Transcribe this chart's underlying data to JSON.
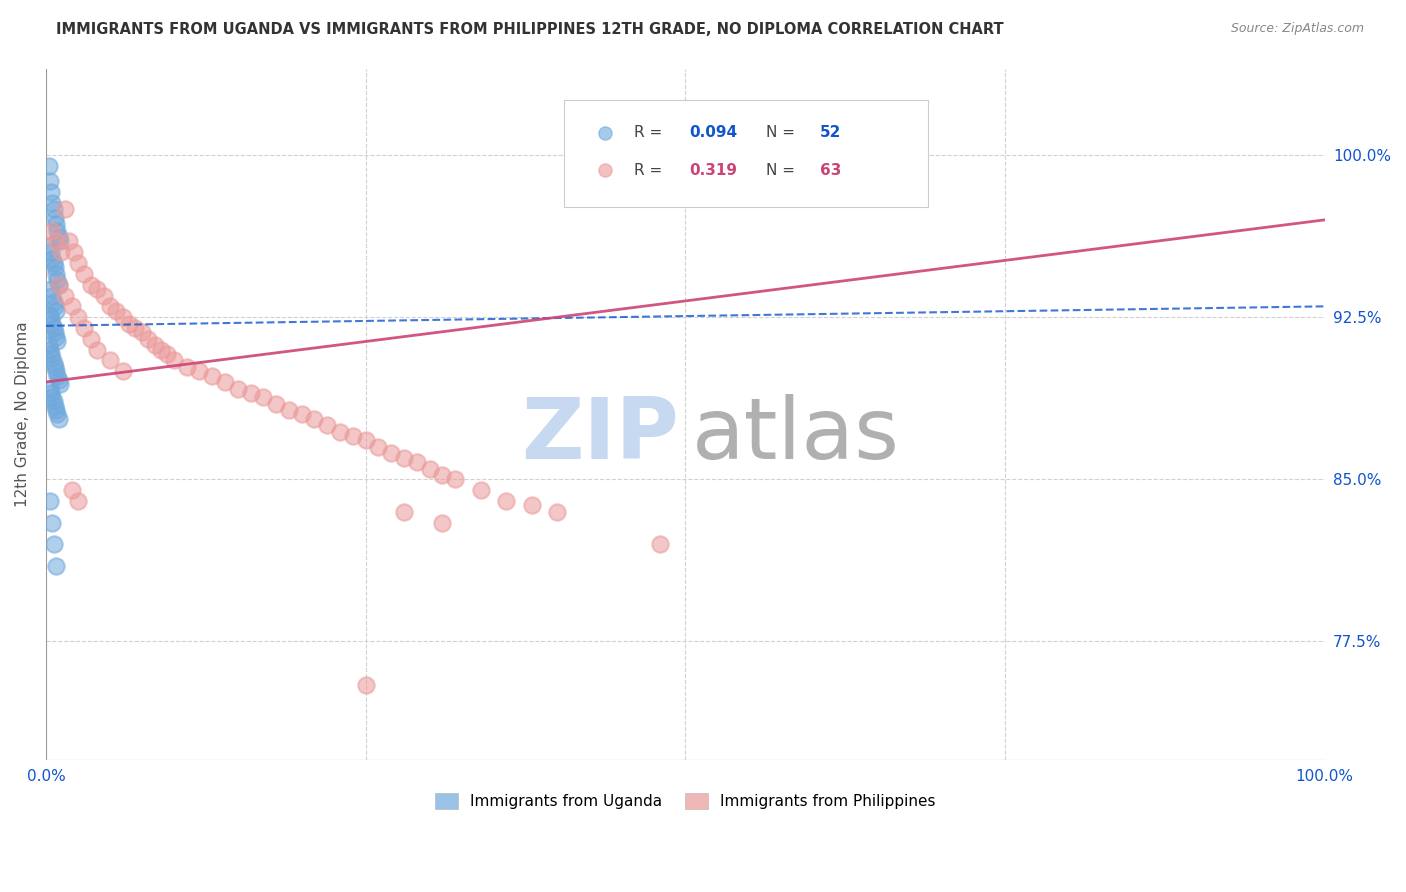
{
  "title": "IMMIGRANTS FROM UGANDA VS IMMIGRANTS FROM PHILIPPINES 12TH GRADE, NO DIPLOMA CORRELATION CHART",
  "source": "Source: ZipAtlas.com",
  "ylabel": "12th Grade, No Diploma",
  "uganda_color": "#6fa8dc",
  "philippines_color": "#ea9999",
  "uganda_line_color": "#1155cc",
  "philippines_line_color": "#cc4477",
  "uganda_R": 0.094,
  "uganda_N": 52,
  "philippines_R": 0.319,
  "philippines_N": 63,
  "watermark_zip_color": "#c6d9f0",
  "watermark_atlas_color": "#b0b0b0",
  "xlim": [
    0.0,
    1.0
  ],
  "ylim": [
    0.72,
    1.04
  ],
  "yticks": [
    0.775,
    0.85,
    0.925,
    1.0
  ],
  "ytick_labels": [
    "77.5%",
    "85.0%",
    "92.5%",
    "100.0%"
  ],
  "xtick_labels": [
    "0.0%",
    "",
    "",
    "",
    "100.0%"
  ],
  "legend_label_uganda": "Immigrants from Uganda",
  "legend_label_philippines": "Immigrants from Philippines",
  "uganda_x": [
    0.002,
    0.003,
    0.004,
    0.005,
    0.006,
    0.007,
    0.008,
    0.009,
    0.01,
    0.011,
    0.003,
    0.004,
    0.005,
    0.006,
    0.007,
    0.008,
    0.009,
    0.01,
    0.004,
    0.005,
    0.006,
    0.007,
    0.008,
    0.003,
    0.004,
    0.005,
    0.006,
    0.007,
    0.008,
    0.009,
    0.002,
    0.003,
    0.004,
    0.005,
    0.006,
    0.007,
    0.008,
    0.009,
    0.01,
    0.011,
    0.003,
    0.004,
    0.005,
    0.006,
    0.007,
    0.008,
    0.009,
    0.01,
    0.003,
    0.005,
    0.006,
    0.008
  ],
  "uganda_y": [
    0.995,
    0.988,
    0.983,
    0.978,
    0.975,
    0.971,
    0.968,
    0.965,
    0.962,
    0.96,
    0.958,
    0.955,
    0.952,
    0.95,
    0.948,
    0.945,
    0.942,
    0.94,
    0.938,
    0.935,
    0.932,
    0.93,
    0.928,
    0.926,
    0.924,
    0.922,
    0.92,
    0.918,
    0.916,
    0.914,
    0.912,
    0.91,
    0.908,
    0.906,
    0.904,
    0.902,
    0.9,
    0.898,
    0.896,
    0.894,
    0.892,
    0.89,
    0.888,
    0.886,
    0.884,
    0.882,
    0.88,
    0.878,
    0.84,
    0.83,
    0.82,
    0.81
  ],
  "philippines_x": [
    0.005,
    0.008,
    0.012,
    0.015,
    0.018,
    0.022,
    0.025,
    0.03,
    0.035,
    0.04,
    0.045,
    0.05,
    0.055,
    0.06,
    0.065,
    0.07,
    0.075,
    0.08,
    0.085,
    0.09,
    0.095,
    0.1,
    0.11,
    0.12,
    0.13,
    0.14,
    0.15,
    0.16,
    0.17,
    0.18,
    0.19,
    0.2,
    0.21,
    0.22,
    0.23,
    0.24,
    0.25,
    0.26,
    0.27,
    0.28,
    0.29,
    0.3,
    0.31,
    0.32,
    0.34,
    0.36,
    0.38,
    0.4,
    0.48,
    0.01,
    0.015,
    0.02,
    0.025,
    0.03,
    0.035,
    0.04,
    0.05,
    0.06,
    0.02,
    0.025,
    0.28,
    0.31,
    0.25
  ],
  "philippines_y": [
    0.965,
    0.96,
    0.955,
    0.975,
    0.96,
    0.955,
    0.95,
    0.945,
    0.94,
    0.938,
    0.935,
    0.93,
    0.928,
    0.925,
    0.922,
    0.92,
    0.918,
    0.915,
    0.912,
    0.91,
    0.908,
    0.905,
    0.902,
    0.9,
    0.898,
    0.895,
    0.892,
    0.89,
    0.888,
    0.885,
    0.882,
    0.88,
    0.878,
    0.875,
    0.872,
    0.87,
    0.868,
    0.865,
    0.862,
    0.86,
    0.858,
    0.855,
    0.852,
    0.85,
    0.845,
    0.84,
    0.838,
    0.835,
    0.82,
    0.94,
    0.935,
    0.93,
    0.925,
    0.92,
    0.915,
    0.91,
    0.905,
    0.9,
    0.845,
    0.84,
    0.835,
    0.83,
    0.755
  ],
  "ug_trend_x": [
    0.0,
    1.0
  ],
  "ug_trend_y": [
    0.921,
    0.93
  ],
  "ph_trend_x": [
    0.0,
    1.0
  ],
  "ph_trend_y": [
    0.895,
    0.97
  ]
}
